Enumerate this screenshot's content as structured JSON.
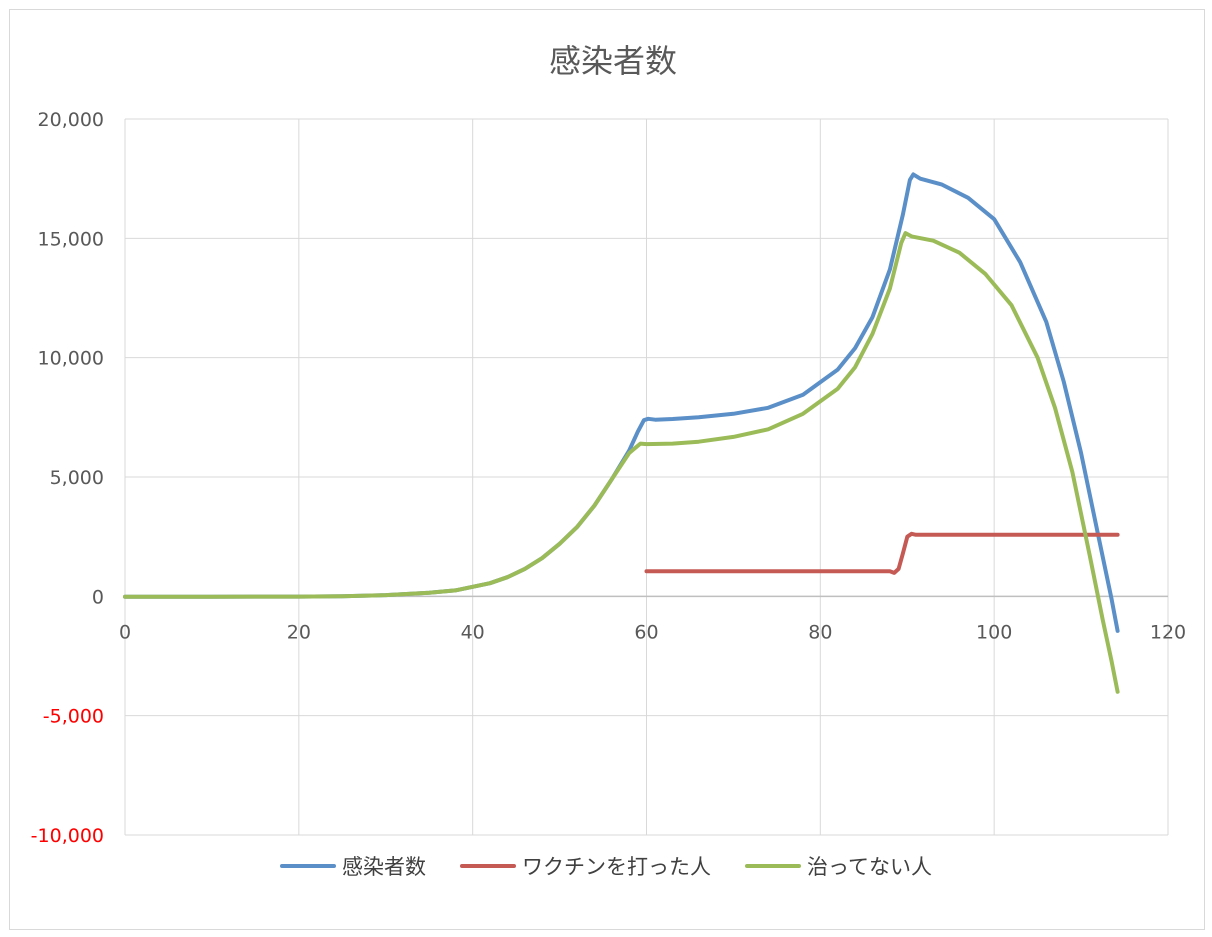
{
  "chart_data": {
    "type": "line",
    "title": "感染者数",
    "xlabel": "",
    "ylabel": "",
    "xlim": [
      0,
      120
    ],
    "ylim": [
      -10000,
      20000
    ],
    "x_ticks": [
      "0",
      "20",
      "40",
      "60",
      "80",
      "100",
      "120"
    ],
    "y_ticks": [
      {
        "value": 20000,
        "label": "20,000",
        "color": "#595959"
      },
      {
        "value": 15000,
        "label": "15,000",
        "color": "#595959"
      },
      {
        "value": 10000,
        "label": "10,000",
        "color": "#595959"
      },
      {
        "value": 5000,
        "label": "5,000",
        "color": "#595959"
      },
      {
        "value": 0,
        "label": "0",
        "color": "#595959"
      },
      {
        "value": -5000,
        "label": "-5,000",
        "color": "#ff0000"
      },
      {
        "value": -10000,
        "label": "-10,000",
        "color": "#ff0000"
      }
    ],
    "grid": true,
    "legend_position": "bottom",
    "series": [
      {
        "name": "感染者数",
        "color": "#5b8fc7",
        "points": [
          [
            0,
            -20
          ],
          [
            10,
            -15
          ],
          [
            20,
            -10
          ],
          [
            25,
            0
          ],
          [
            30,
            50
          ],
          [
            35,
            150
          ],
          [
            38,
            250
          ],
          [
            40,
            400
          ],
          [
            42,
            550
          ],
          [
            44,
            800
          ],
          [
            46,
            1150
          ],
          [
            48,
            1600
          ],
          [
            50,
            2200
          ],
          [
            52,
            2900
          ],
          [
            54,
            3800
          ],
          [
            56,
            4900
          ],
          [
            58,
            6100
          ],
          [
            59,
            6900
          ],
          [
            59.7,
            7380
          ],
          [
            60.2,
            7440
          ],
          [
            61,
            7400
          ],
          [
            63,
            7430
          ],
          [
            66,
            7500
          ],
          [
            70,
            7650
          ],
          [
            74,
            7900
          ],
          [
            78,
            8450
          ],
          [
            82,
            9500
          ],
          [
            84,
            10400
          ],
          [
            86,
            11700
          ],
          [
            88,
            13700
          ],
          [
            89.5,
            16000
          ],
          [
            90.3,
            17450
          ],
          [
            90.7,
            17680
          ],
          [
            91.5,
            17500
          ],
          [
            94,
            17250
          ],
          [
            97,
            16700
          ],
          [
            100,
            15800
          ],
          [
            103,
            14000
          ],
          [
            106,
            11500
          ],
          [
            108,
            9000
          ],
          [
            110,
            6000
          ],
          [
            112,
            2500
          ],
          [
            113.5,
            -100
          ],
          [
            114.2,
            -1450
          ]
        ]
      },
      {
        "name": "ワクチンを打った人",
        "color": "#c55a55",
        "points": [
          [
            60,
            1050
          ],
          [
            70,
            1050
          ],
          [
            80,
            1050
          ],
          [
            87,
            1050
          ],
          [
            88,
            1050
          ],
          [
            88.5,
            980
          ],
          [
            89,
            1150
          ],
          [
            89.5,
            1800
          ],
          [
            90,
            2500
          ],
          [
            90.5,
            2620
          ],
          [
            91,
            2580
          ],
          [
            100,
            2580
          ],
          [
            110,
            2580
          ],
          [
            114.2,
            2580
          ]
        ]
      },
      {
        "name": "治ってない人",
        "color": "#9bbb59",
        "points": [
          [
            0,
            -20
          ],
          [
            10,
            -15
          ],
          [
            20,
            -10
          ],
          [
            25,
            0
          ],
          [
            30,
            50
          ],
          [
            35,
            150
          ],
          [
            38,
            250
          ],
          [
            40,
            400
          ],
          [
            42,
            550
          ],
          [
            44,
            800
          ],
          [
            46,
            1150
          ],
          [
            48,
            1600
          ],
          [
            50,
            2200
          ],
          [
            52,
            2900
          ],
          [
            54,
            3800
          ],
          [
            56,
            4900
          ],
          [
            58,
            6000
          ],
          [
            59.3,
            6400
          ],
          [
            60,
            6380
          ],
          [
            63,
            6400
          ],
          [
            66,
            6480
          ],
          [
            70,
            6680
          ],
          [
            74,
            7000
          ],
          [
            78,
            7650
          ],
          [
            82,
            8700
          ],
          [
            84,
            9600
          ],
          [
            86,
            11000
          ],
          [
            88,
            12900
          ],
          [
            89.3,
            14800
          ],
          [
            89.8,
            15220
          ],
          [
            90.5,
            15080
          ],
          [
            93,
            14900
          ],
          [
            96,
            14400
          ],
          [
            99,
            13500
          ],
          [
            102,
            12200
          ],
          [
            105,
            10000
          ],
          [
            107,
            7900
          ],
          [
            109,
            5200
          ],
          [
            111,
            1700
          ],
          [
            112.5,
            -1000
          ],
          [
            113.5,
            -2700
          ],
          [
            114.2,
            -4000
          ]
        ]
      }
    ]
  }
}
